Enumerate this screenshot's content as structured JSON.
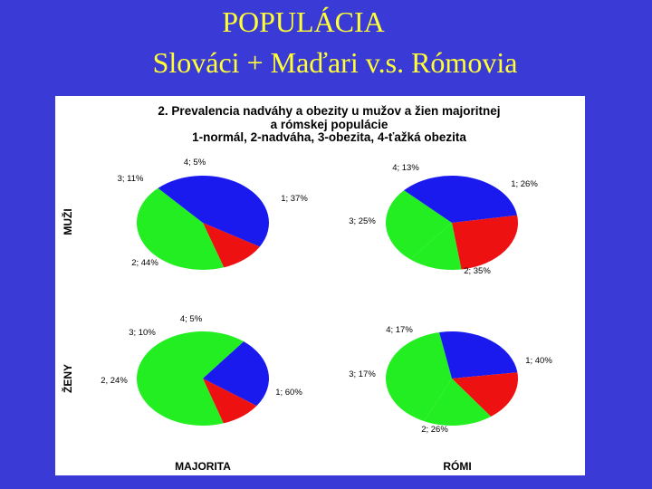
{
  "title": "POPULÁCIA",
  "subtitle": "Slováci + Maďari v.s. Rómovia",
  "chart_header": [
    "2.  Prevalencia nadváhy a obezity u mužov a žien majoritnej",
    "a rómskej populácie",
    "1-normál, 2-nadváha, 3-obezita, 4-ťažká obezita"
  ],
  "row_labels": [
    "MUŽI",
    "ŽENY"
  ],
  "column_labels": [
    "MAJORITA",
    "RÓMI"
  ],
  "colors": {
    "1": "#22ee22",
    "2": "#1a1aee",
    "3": "#ee1111",
    "4": "#22ee22"
  },
  "chart_data": [
    {
      "type": "pie",
      "row": "MUŽI",
      "column": "MAJORITA",
      "slices": [
        {
          "category": "1",
          "value": 37,
          "label": "1; 37%"
        },
        {
          "category": "2",
          "value": 44,
          "label": "2; 44%"
        },
        {
          "category": "3",
          "value": 11,
          "label": "3; 11%"
        },
        {
          "category": "4",
          "value": 5,
          "label": "4; 5%"
        }
      ]
    },
    {
      "type": "pie",
      "row": "MUŽI",
      "column": "RÓMI",
      "slices": [
        {
          "category": "1",
          "value": 26,
          "label": "1; 26%"
        },
        {
          "category": "2",
          "value": 35,
          "label": "2; 35%"
        },
        {
          "category": "3",
          "value": 25,
          "label": "3; 25%"
        },
        {
          "category": "4",
          "value": 13,
          "label": "4; 13%"
        }
      ]
    },
    {
      "type": "pie",
      "row": "ŽENY",
      "column": "MAJORITA",
      "slices": [
        {
          "category": "1",
          "value": 60,
          "label": "1; 60%"
        },
        {
          "category": "2",
          "value": 24,
          "label": "2, 24%"
        },
        {
          "category": "3",
          "value": 10,
          "label": "3; 10%"
        },
        {
          "category": "4",
          "value": 5,
          "label": "4; 5%"
        }
      ]
    },
    {
      "type": "pie",
      "row": "ŽENY",
      "column": "RÓMI",
      "slices": [
        {
          "category": "1",
          "value": 40,
          "label": "1; 40%"
        },
        {
          "category": "2",
          "value": 26,
          "label": "2; 26%"
        },
        {
          "category": "3",
          "value": 17,
          "label": "3; 17%"
        },
        {
          "category": "4",
          "value": 17,
          "label": "4; 17%"
        }
      ]
    }
  ]
}
